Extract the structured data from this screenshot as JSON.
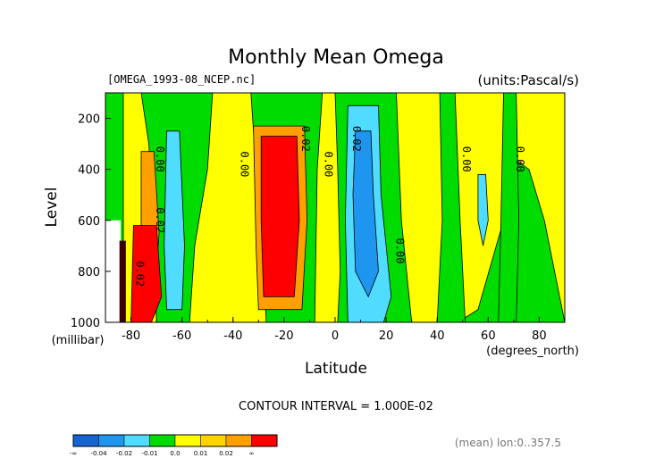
{
  "chart_data": {
    "type": "heatmap",
    "title": "Monthly Mean Omega",
    "file_label": "[OMEGA_1993-08_NCEP.nc]",
    "units_label": "(units:Pascal/s)",
    "xlabel": "Latitude",
    "x_units": "(degrees_north)",
    "ylabel": "Level",
    "y_units": "(millibar)",
    "x_ticks": [
      "-80",
      "-60",
      "-40",
      "-20",
      "0",
      "20",
      "40",
      "60",
      "80"
    ],
    "x_tick_values": [
      -80,
      -60,
      -40,
      -20,
      0,
      20,
      40,
      60,
      80
    ],
    "y_ticks": [
      "200",
      "400",
      "600",
      "800",
      "1000"
    ],
    "y_tick_values": [
      200,
      400,
      600,
      800,
      1000
    ],
    "xlim": [
      -90,
      90
    ],
    "ylim": [
      1000,
      100
    ],
    "y_inverted": true,
    "contour_interval_text": "CONTOUR INTERVAL = 1.000E-02",
    "footnote": "(mean) lon:0..357.5",
    "contour_labels": [
      {
        "text": "0.00",
        "lat": -70,
        "level": 360
      },
      {
        "text": "0.00",
        "lat": -37,
        "level": 380
      },
      {
        "text": "0.02",
        "lat": -13,
        "level": 280
      },
      {
        "text": "0.00",
        "lat": -4,
        "level": 380
      },
      {
        "text": "0.02",
        "lat": 7,
        "level": 280
      },
      {
        "text": "0.00",
        "lat": 24,
        "level": 720
      },
      {
        "text": "0.00",
        "lat": 50,
        "level": 360
      },
      {
        "text": "0.00",
        "lat": 71,
        "level": 360
      },
      {
        "text": "0.02",
        "lat": -70,
        "level": 600
      },
      {
        "text": "0.02",
        "lat": -78,
        "level": 810
      }
    ],
    "colorbar": {
      "colors": [
        "#1464d2",
        "#1e96f0",
        "#50dcff",
        "#00dc00",
        "#ffff00",
        "#ffd300",
        "#ffa000",
        "#ff0000"
      ],
      "labels": [
        "-∞",
        "-0.04",
        "-0.02",
        "-0.01",
        "0.0",
        "0.01",
        "0.02",
        "∞"
      ]
    },
    "regions": [
      {
        "level": "green",
        "lat": -88,
        "p": 150
      },
      {
        "level": "yellow",
        "lat": -76,
        "p": 150
      },
      {
        "level": "green",
        "lat": -63,
        "p": 150
      },
      {
        "level": "yellow",
        "lat": -47,
        "p": 150
      },
      {
        "level": "green",
        "lat": -35,
        "p": 300
      },
      {
        "level": "yellow",
        "lat": -23,
        "p": 600
      },
      {
        "level": "orange",
        "lat": -23,
        "p": 600
      },
      {
        "level": "red",
        "lat": -23,
        "p": 600
      },
      {
        "level": "cyan",
        "lat": 10,
        "p": 500
      },
      {
        "level": "blue",
        "lat": 10,
        "p": 500
      },
      {
        "level": "yellow",
        "lat": 60,
        "p": 500
      }
    ]
  }
}
